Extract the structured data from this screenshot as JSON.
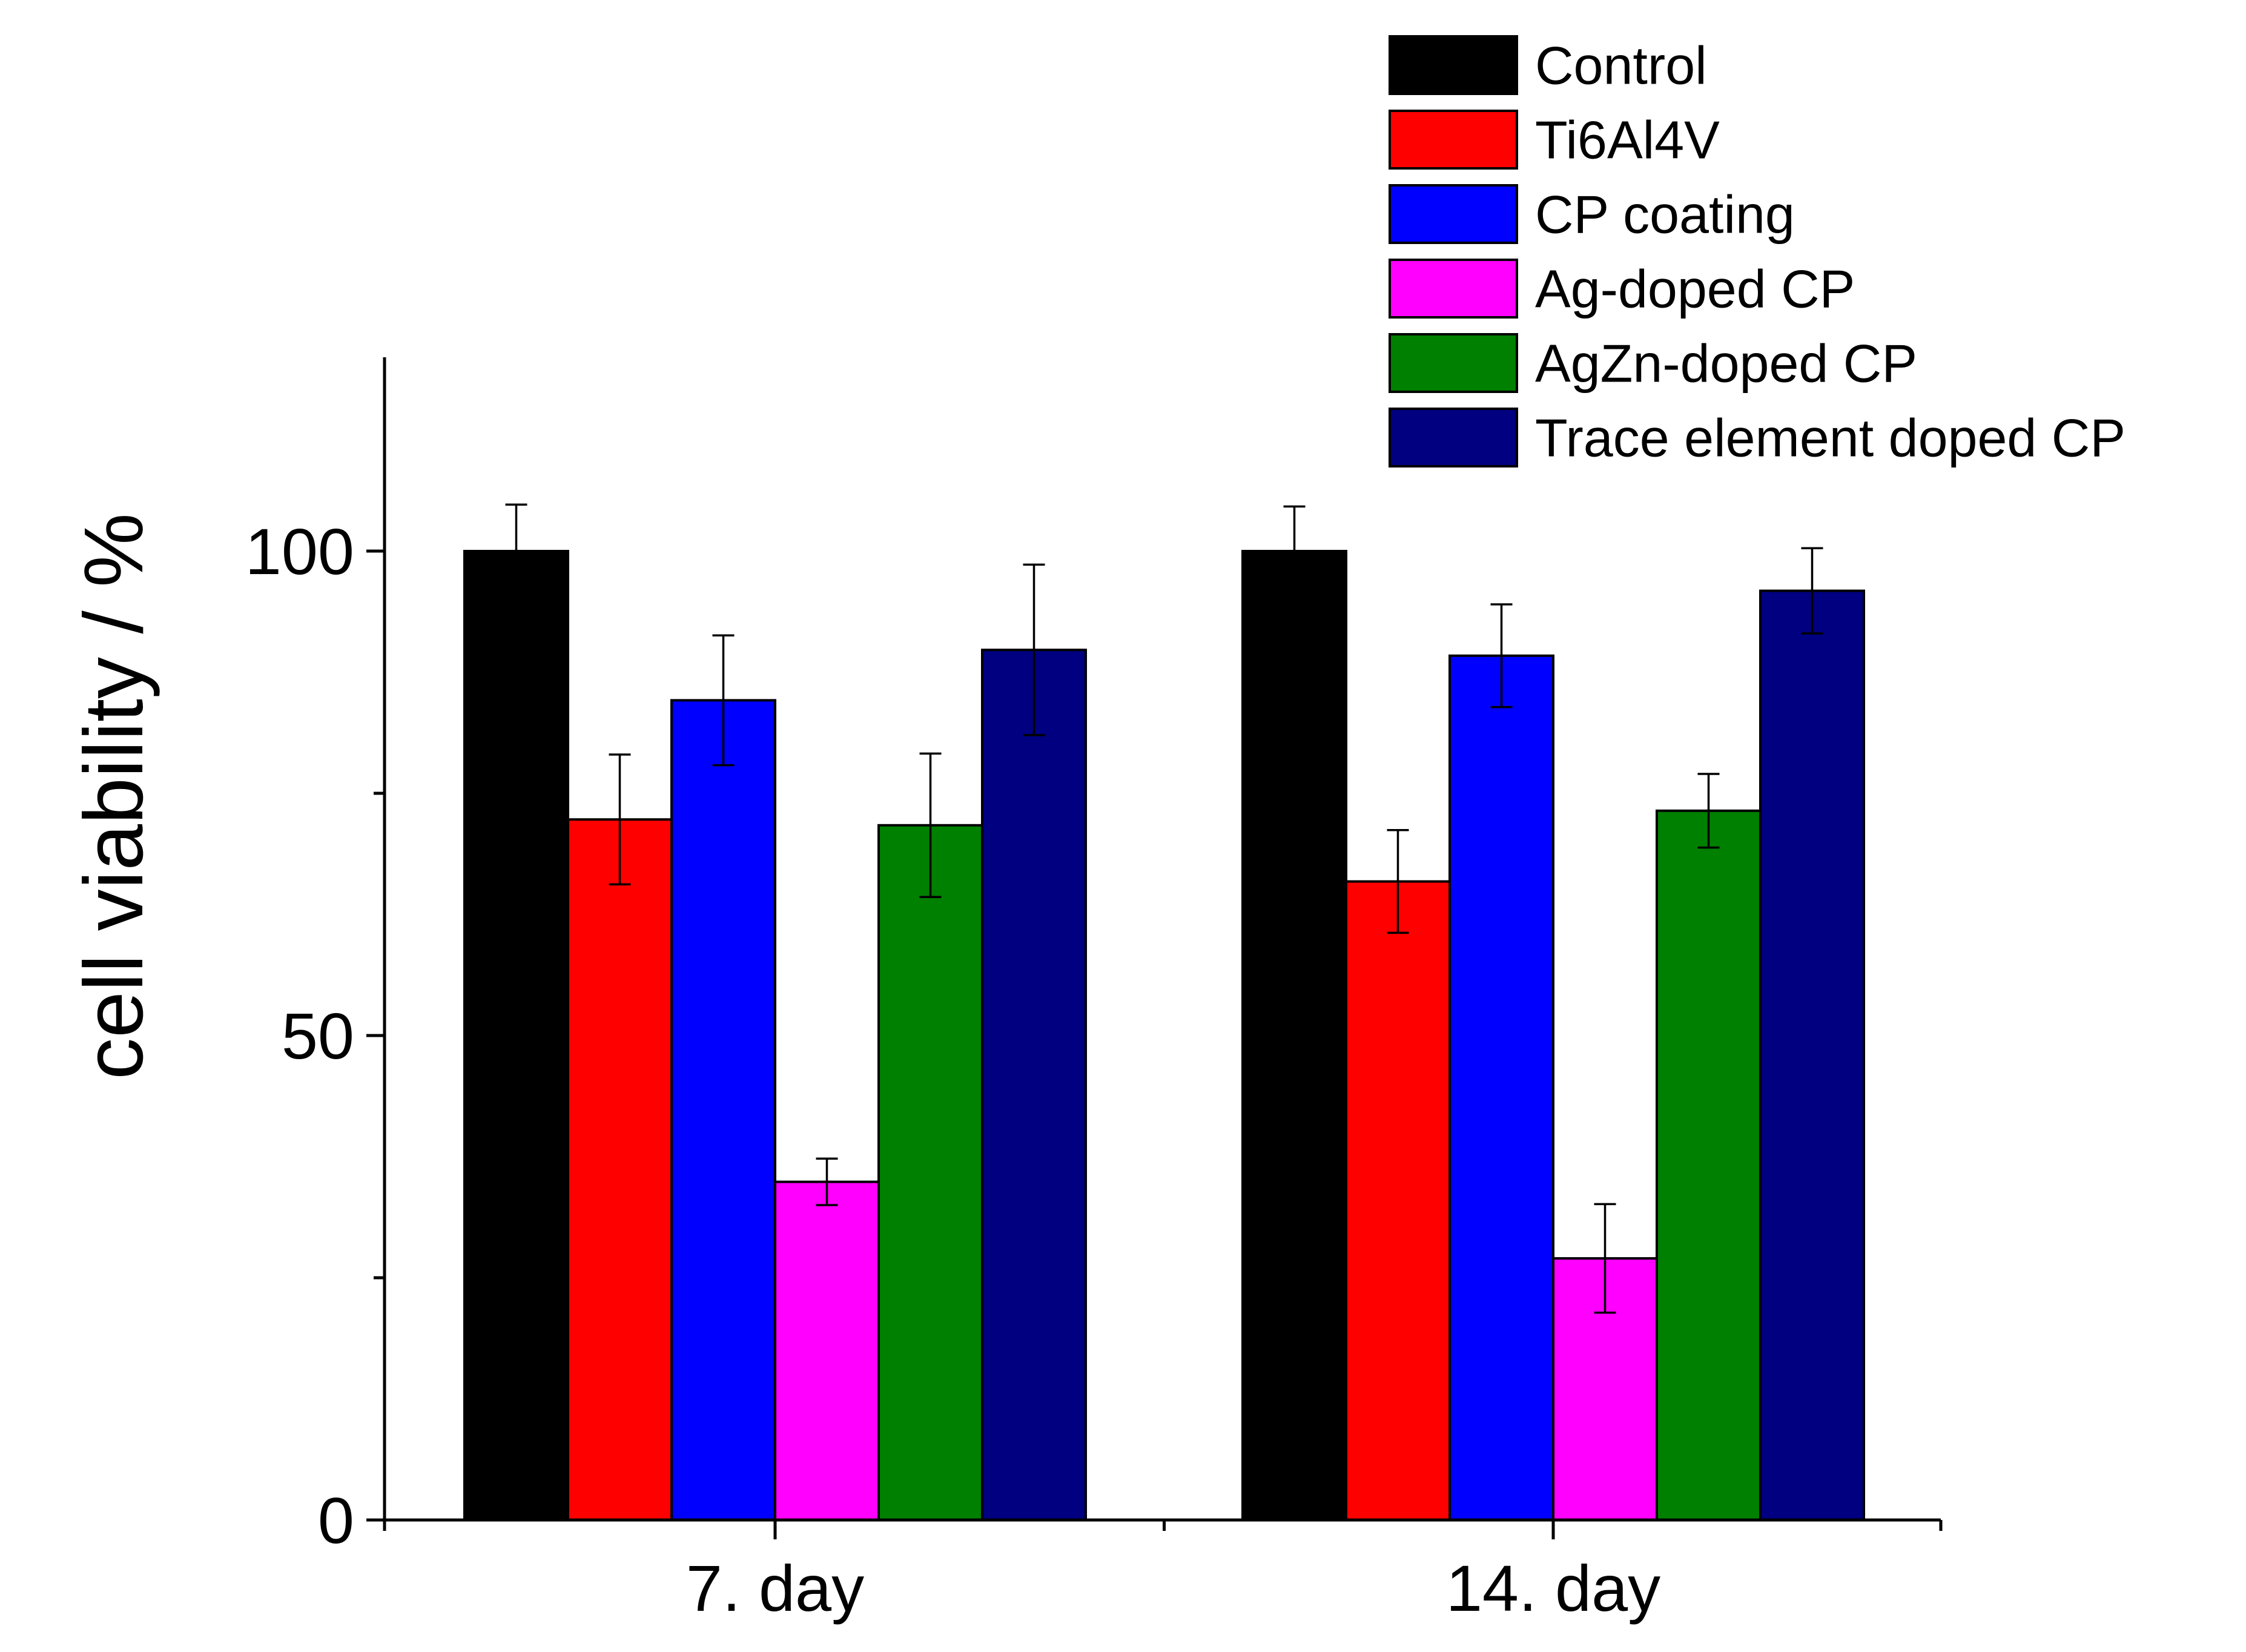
{
  "chart_data": {
    "type": "bar",
    "title": "",
    "xlabel": "",
    "ylabel": "cell viability / %",
    "ylim": [
      0,
      120
    ],
    "yticks": [
      0,
      50,
      100
    ],
    "yticks_minor": [
      25,
      75
    ],
    "categories": [
      "7. day",
      "14. day"
    ],
    "legend_position": "top-right",
    "series": [
      {
        "name": "Control",
        "color": "#000000",
        "values": [
          100,
          100
        ],
        "errors": [
          4.8,
          4.6
        ]
      },
      {
        "name": "Ti6Al4V",
        "color": "#ff0000",
        "values": [
          72.3,
          65.9
        ],
        "errors": [
          6.7,
          5.3
        ]
      },
      {
        "name": "CP coating",
        "color": "#0000ff",
        "values": [
          84.6,
          89.2
        ],
        "errors": [
          6.7,
          5.3
        ]
      },
      {
        "name": "Ag-doped CP",
        "color": "#ff00ff",
        "values": [
          34.9,
          27.0
        ],
        "errors": [
          2.4,
          5.6
        ]
      },
      {
        "name": "AgZn-doped CP",
        "color": "#008000",
        "values": [
          71.7,
          73.2
        ],
        "errors": [
          7.4,
          3.8
        ]
      },
      {
        "name": "Trace element doped CP",
        "color": "#000080",
        "values": [
          89.8,
          95.9
        ],
        "errors": [
          8.8,
          4.4
        ]
      }
    ]
  }
}
